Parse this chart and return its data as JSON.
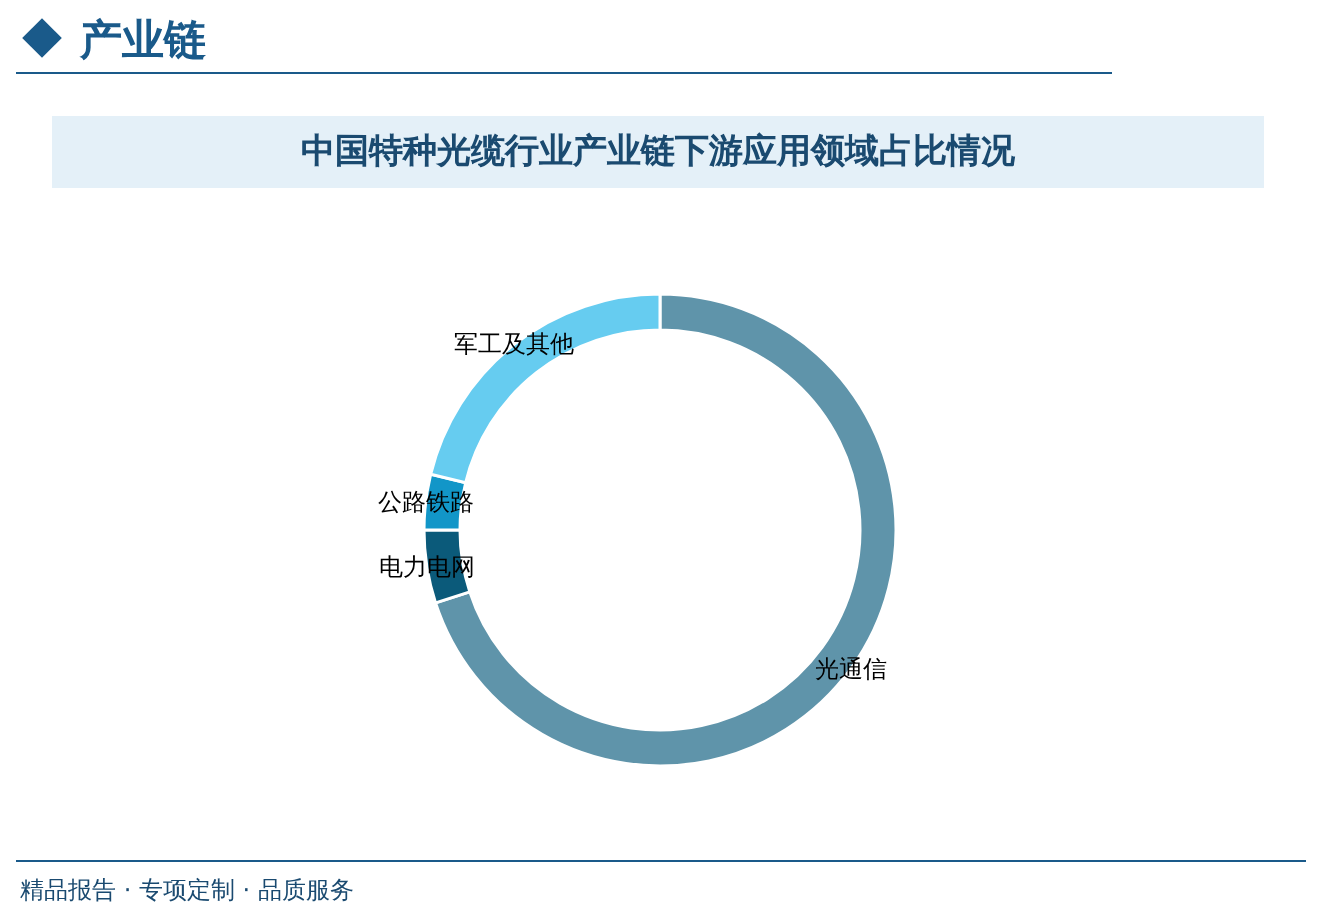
{
  "chart_data": {
    "type": "donut",
    "title": "中国特种光缆行业产业链下游应用领域占比情况",
    "categories": [
      "光通信",
      "电力电网",
      "公路铁路",
      "军工及其他"
    ],
    "values": [
      70.0,
      5.0,
      3.8,
      21.2
    ],
    "colors": [
      "#5f94aa",
      "#0b5a7a",
      "#1296c8",
      "#66ccf0"
    ],
    "annotations": [
      "产业链",
      "精品报告 · 专项定制 · 品质服务"
    ]
  }
}
